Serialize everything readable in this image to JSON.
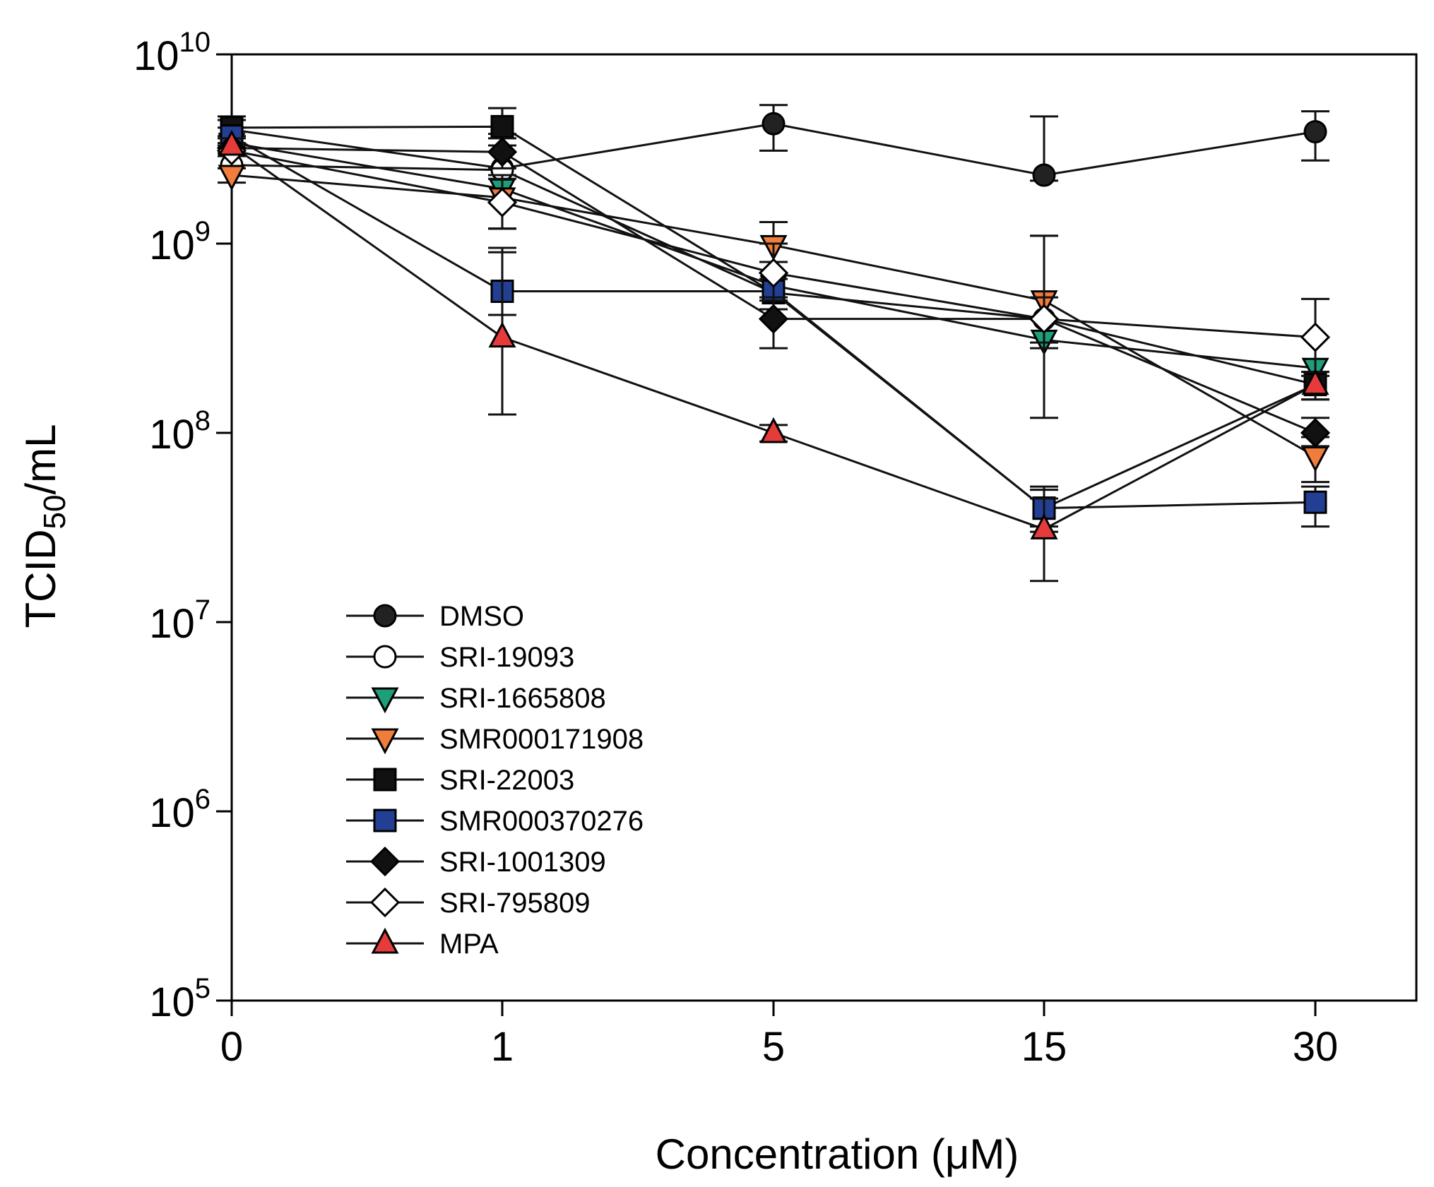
{
  "chart_data": {
    "type": "line",
    "title": "",
    "xlabel": "Concentration (μM)",
    "ylabel_main": "TCID",
    "ylabel_sub": "50",
    "ylabel_tail": "/mL",
    "yscale": "log",
    "ylim": [
      100000,
      10000000000
    ],
    "x": [
      "0",
      "1",
      "5",
      "15",
      "30"
    ],
    "y_ticks": [
      {
        "base": "10",
        "exp": "5",
        "value": 100000
      },
      {
        "base": "10",
        "exp": "6",
        "value": 1000000
      },
      {
        "base": "10",
        "exp": "7",
        "value": 10000000
      },
      {
        "base": "10",
        "exp": "8",
        "value": 100000000
      },
      {
        "base": "10",
        "exp": "9",
        "value": 1000000000
      },
      {
        "base": "10",
        "exp": "10",
        "value": 10000000000
      }
    ],
    "legend_position": "lower-left inside",
    "series": [
      {
        "name": "DMSO",
        "marker": "circle",
        "fill": "#222222",
        "values": [
          4000000000,
          2500000000,
          4300000000,
          2300000000,
          3900000000
        ],
        "err_low": [
          3300000000,
          1200000000,
          3100000000,
          2150000000,
          2750000000
        ],
        "err_high": [
          4700000000,
          3800000000,
          5400000000,
          4700000000,
          5000000000
        ]
      },
      {
        "name": "SRI-19093",
        "marker": "circle",
        "fill": "#ffffff",
        "values": [
          2600000000,
          2450000000,
          550000000,
          400000000,
          180000000
        ]
      },
      {
        "name": "SRI-1665808",
        "marker": "triangle-down",
        "fill": "#1e9e7a",
        "values": [
          3400000000,
          1950000000,
          600000000,
          310000000,
          220000000
        ]
      },
      {
        "name": "SMR000171908",
        "marker": "triangle-down",
        "fill": "#f07d3c",
        "values": [
          2300000000,
          1750000000,
          980000000,
          500000000,
          75000000
        ],
        "err_low": [
          2100000000,
          1200000000,
          800000000,
          300000000,
          55000000
        ],
        "err_high": [
          2500000000,
          2300000000,
          1300000000,
          1100000000,
          95000000
        ]
      },
      {
        "name": "SRI-22003",
        "marker": "square",
        "fill": "#111111",
        "values": [
          4100000000,
          4150000000,
          550000000,
          40000000,
          180000000
        ],
        "err_low": [
          3700000000,
          3300000000,
          450000000,
          32000000,
          150000000
        ],
        "err_high": [
          4500000000,
          5200000000,
          650000000,
          50000000,
          210000000
        ]
      },
      {
        "name": "SMR000370276",
        "marker": "square",
        "fill": "#233f94",
        "values": [
          3700000000,
          560000000,
          560000000,
          40000000,
          43000000
        ],
        "err_low": [
          3300000000,
          420000000,
          450000000,
          30000000,
          32000000
        ],
        "err_high": [
          4100000000,
          900000000,
          700000000,
          52000000,
          52000000
        ]
      },
      {
        "name": "SRI-1001309",
        "marker": "diamond",
        "fill": "#111111",
        "values": [
          3200000000,
          3050000000,
          400000000,
          400000000,
          100000000
        ],
        "err_low": [
          3000000000,
          2500000000,
          280000000,
          280000000,
          85000000
        ],
        "err_high": [
          3400000000,
          3600000000,
          520000000,
          520000000,
          120000000
        ]
      },
      {
        "name": "SRI-795809",
        "marker": "diamond",
        "fill": "#ffffff",
        "values": [
          3100000000,
          1650000000,
          700000000,
          400000000,
          320000000
        ],
        "err_low": [
          2900000000,
          1200000000,
          500000000,
          120000000,
          200000000
        ],
        "err_high": [
          3300000000,
          2200000000,
          1000000000,
          1100000000,
          510000000
        ]
      },
      {
        "name": "MPA",
        "marker": "triangle-up",
        "fill": "#e53b3b",
        "values": [
          3300000000,
          320000000,
          100000000,
          31000000,
          180000000
        ],
        "err_low": [
          3000000000,
          125000000,
          90000000,
          16500000,
          150000000
        ],
        "err_high": [
          3600000000,
          950000000,
          110000000,
          45000000,
          210000000
        ]
      }
    ]
  }
}
